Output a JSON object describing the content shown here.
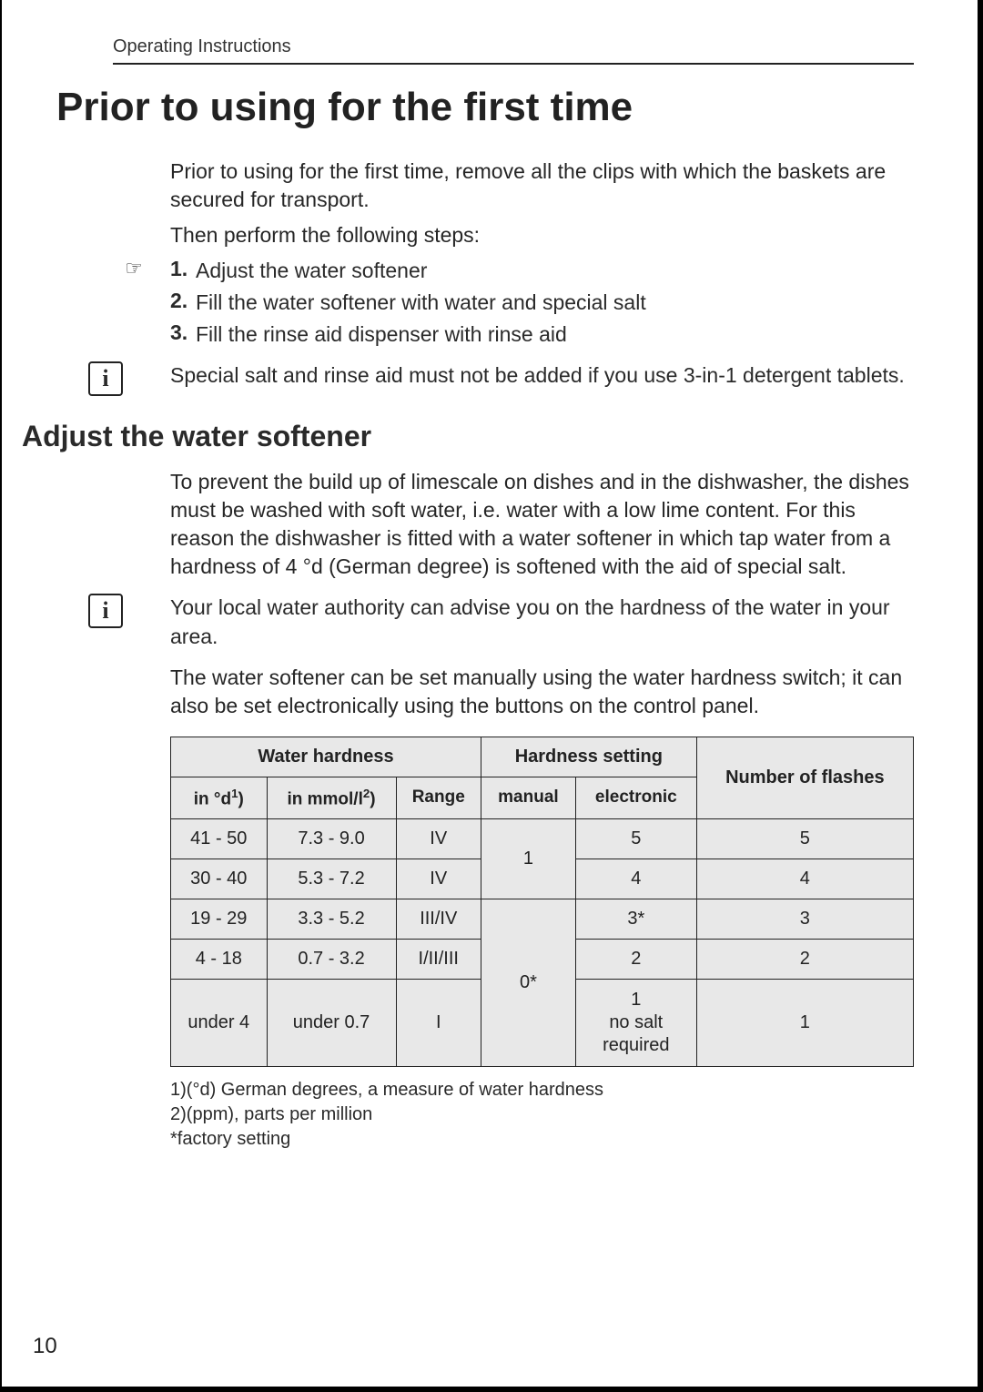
{
  "running_header": "Operating Instructions",
  "title": "Prior to using for the first time",
  "intro_para": "Prior to using for the first time, remove all the clips with which the baskets are secured for transport.",
  "intro_para2": "Then perform the following steps:",
  "steps_marker_glyph": "☞",
  "steps": [
    {
      "num": "1.",
      "text": "Adjust the water softener"
    },
    {
      "num": "2.",
      "text": "Fill the water softener with water and special salt"
    },
    {
      "num": "3.",
      "text": "Fill the rinse aid dispenser with rinse aid"
    }
  ],
  "info1_glyph": "i",
  "info1_text": "Special salt and rinse aid must not be added if you use 3-in-1 detergent tablets.",
  "subheading": "Adjust the water softener",
  "softener_para": "To prevent the build up of limescale on dishes and in the dishwasher, the dishes must be washed with soft water, i.e. water with a low lime content. For this reason the dishwasher is fitted with a water softener in which tap water from a hardness of 4 °d (German degree) is softened with the aid of special salt.",
  "info2_glyph": "i",
  "info2_text": "Your local water authority can advise you on the hardness of the water in your area.",
  "setting_para": "The water softener can be set manually using the water hardness switch; it can also be set electronically using the buttons on the control panel.",
  "table": {
    "type": "table",
    "header_bg": "#e8e8e8",
    "cell_bg": "#e8e8e8",
    "border_color": "#222222",
    "fontsize_header": 20,
    "fontsize_cell": 20,
    "columns_group": [
      {
        "label": "Water hardness",
        "span": 3
      },
      {
        "label": "Hardness setting",
        "span": 2
      },
      {
        "label": "Number of flashes",
        "span": 1,
        "rowspan": 2
      }
    ],
    "sub_columns": [
      "in °d¹)",
      "in mmol/l²)",
      "Range",
      "manual",
      "electronic"
    ],
    "rows": [
      {
        "d": "41 - 50",
        "mmol": "7.3 - 9.0",
        "range": "IV",
        "manual": "1",
        "electronic": "5",
        "flashes": "5",
        "manual_rowspan": 2
      },
      {
        "d": "30 - 40",
        "mmol": "5.3 - 7.2",
        "range": "IV",
        "electronic": "4",
        "flashes": "4"
      },
      {
        "d": "19 - 29",
        "mmol": "3.3 - 5.2",
        "range": "III/IV",
        "manual": "0*",
        "electronic": "3*",
        "flashes": "3",
        "manual_rowspan": 3
      },
      {
        "d": "4 - 18",
        "mmol": "0.7 - 3.2",
        "range": "I/II/III",
        "electronic": "2",
        "flashes": "2"
      },
      {
        "d": "under 4",
        "mmol": "under 0.7",
        "range": "I",
        "electronic": "1\nno salt required",
        "flashes": "1"
      }
    ]
  },
  "footnotes": [
    "1)(°d) German degrees, a measure of water hardness",
    "2)(ppm), parts per million",
    "*factory setting"
  ],
  "page_number": "10"
}
